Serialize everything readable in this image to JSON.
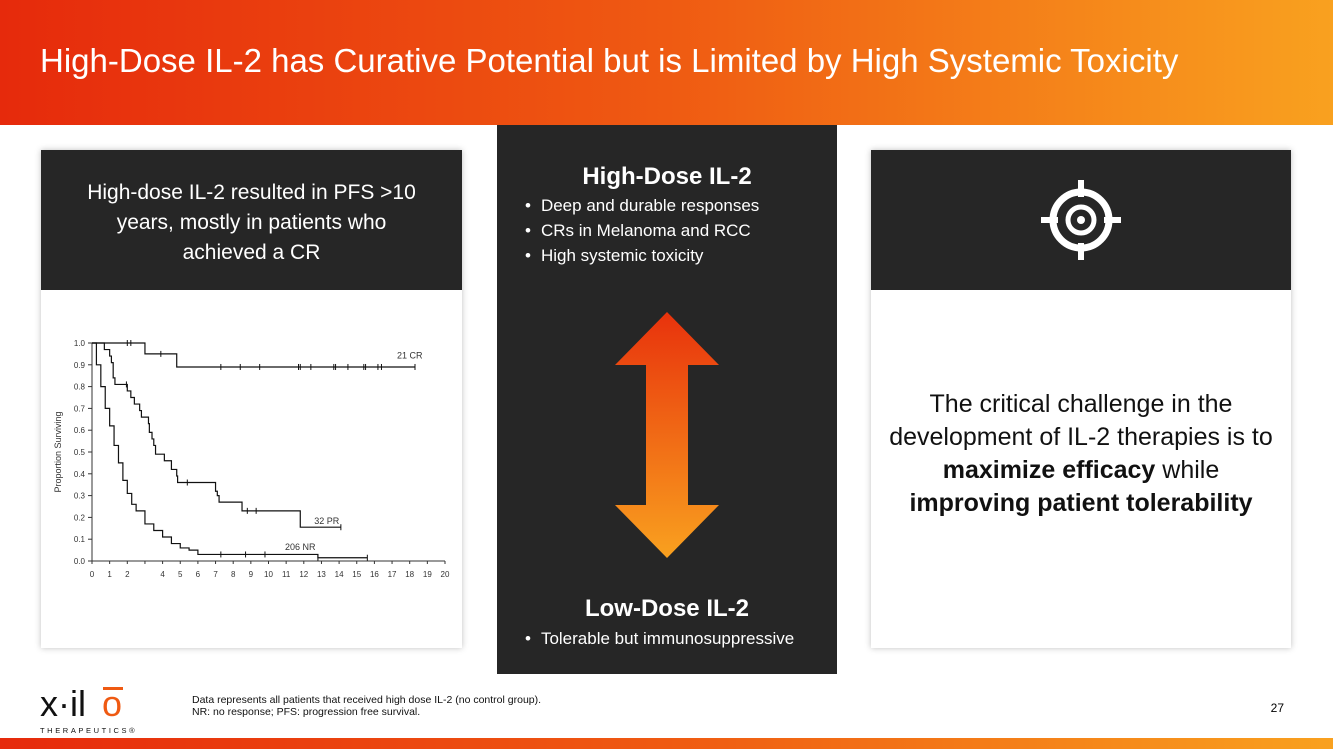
{
  "title": "High-Dose IL-2 has Curative Potential but is Limited by High Systemic Toxicity",
  "left_card": {
    "heading": "High-dose IL-2 resulted in PFS >10 years, mostly in patients who achieved a CR"
  },
  "middle": {
    "high_title": "High-Dose IL-2",
    "high_bullets": [
      "Deep and durable responses",
      "CRs in Melanoma and RCC",
      "High systemic toxicity"
    ],
    "low_title": "Low-Dose IL-2",
    "low_bullets": [
      "Tolerable but immunosuppressive"
    ],
    "arrow_colors": [
      "#e8320c",
      "#f9a11f"
    ]
  },
  "right_card": {
    "icon": "target-icon",
    "text_pre": "The critical challenge in the development of IL-2 therapies is to ",
    "bold1": "maximize efficacy",
    "text_mid": " while ",
    "bold2": "improving patient tolerability"
  },
  "footer": {
    "note1": "Data represents all patients that received high dose IL-2 (no control group).",
    "note2": "NR: no response; PFS: progression free survival.",
    "page": "27",
    "logo_text": "x·ilio",
    "logo_sub": "THERAPEUTICS®"
  },
  "chart_data": {
    "type": "line",
    "subtype": "kaplan-meier",
    "ylabel": "Proportion Surviving",
    "xlabel": "",
    "xlim": [
      0,
      20
    ],
    "ylim": [
      0,
      1
    ],
    "xticks": [
      "0",
      "1",
      "2",
      "",
      "4",
      "5",
      "6",
      "7",
      "8",
      "9",
      "10",
      "11",
      "12",
      "13",
      "14",
      "15",
      "16",
      "17",
      "18",
      "19",
      "20"
    ],
    "yticks": [
      "0.0",
      "0.1",
      "0.2",
      "0.3",
      "0.4",
      "0.5",
      "0.6",
      "0.7",
      "0.8",
      "0.9",
      "1.0"
    ],
    "grid": false,
    "series": [
      {
        "name": "21 CR",
        "steps": [
          [
            0,
            1
          ],
          [
            3,
            0.95
          ],
          [
            4.8,
            0.89
          ],
          [
            18.3,
            0.89
          ]
        ],
        "censored": [
          2,
          2.2,
          3.9,
          7.3,
          8.4,
          9.5,
          11.7,
          11.8,
          12.4,
          13.7,
          13.8,
          14.5,
          15.4,
          15.5,
          16.2,
          16.4,
          18.3
        ]
      },
      {
        "name": "32 PR",
        "steps": [
          [
            0,
            1
          ],
          [
            0.7,
            0.97
          ],
          [
            1,
            0.94
          ],
          [
            1.1,
            0.91
          ],
          [
            1.2,
            0.84
          ],
          [
            1.3,
            0.81
          ],
          [
            2,
            0.78
          ],
          [
            2.2,
            0.75
          ],
          [
            2.4,
            0.72
          ],
          [
            2.7,
            0.69
          ],
          [
            2.8,
            0.66
          ],
          [
            3.2,
            0.63
          ],
          [
            3.25,
            0.59
          ],
          [
            3.4,
            0.56
          ],
          [
            3.5,
            0.53
          ],
          [
            3.6,
            0.49
          ],
          [
            4.1,
            0.46
          ],
          [
            4.5,
            0.42
          ],
          [
            4.8,
            0.39
          ],
          [
            4.85,
            0.36
          ],
          [
            7,
            0.32
          ],
          [
            7.1,
            0.3
          ],
          [
            7.2,
            0.27
          ],
          [
            8.5,
            0.23
          ],
          [
            11.8,
            0.155
          ],
          [
            14.1,
            0.155
          ]
        ],
        "censored": [
          1.95,
          5.4,
          8.8,
          9.3,
          14.1
        ]
      },
      {
        "name": "206 NR",
        "steps": [
          [
            0,
            1
          ],
          [
            0.25,
            0.9
          ],
          [
            0.5,
            0.8
          ],
          [
            0.75,
            0.7
          ],
          [
            1,
            0.62
          ],
          [
            1.25,
            0.53
          ],
          [
            1.5,
            0.45
          ],
          [
            1.75,
            0.37
          ],
          [
            2,
            0.31
          ],
          [
            2.25,
            0.26
          ],
          [
            2.5,
            0.23
          ],
          [
            3,
            0.17
          ],
          [
            3.5,
            0.14
          ],
          [
            4,
            0.11
          ],
          [
            4.5,
            0.08
          ],
          [
            5,
            0.06
          ],
          [
            5.5,
            0.05
          ],
          [
            6,
            0.03
          ],
          [
            12.8,
            0.015
          ],
          [
            15.6,
            0.015
          ]
        ],
        "censored": [
          7.3,
          8.7,
          9.8,
          12.8,
          15.6
        ]
      }
    ]
  }
}
